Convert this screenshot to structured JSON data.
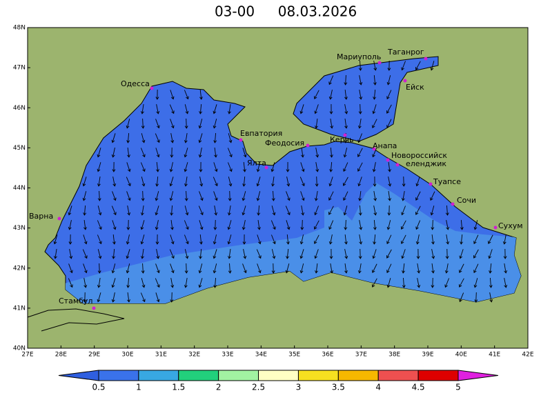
{
  "header": {
    "time": "03-00",
    "date": "08.03.2026"
  },
  "map": {
    "lon_ticks": [
      "27E",
      "28E",
      "29E",
      "30E",
      "31E",
      "32E",
      "33E",
      "34E",
      "35E",
      "36E",
      "37E",
      "38E",
      "39E",
      "40E",
      "41E",
      "42E"
    ],
    "lat_ticks": [
      "48N",
      "47N",
      "46N",
      "45N",
      "44N",
      "43N",
      "42N",
      "41N",
      "40N"
    ],
    "cities": [
      "Одесса",
      "Евпатория",
      "Ялта",
      "Феодосия",
      "Керчь",
      "Анапа",
      "Новороссийск",
      "еленджик",
      "Туапсе",
      "Сочи",
      "Сухум",
      "Варна",
      "Стамбул",
      "Мариуполь",
      "Таганрог",
      "Ейск"
    ]
  },
  "colorbar": {
    "levels": [
      0.5,
      1,
      1.5,
      2,
      2.5,
      3,
      3.5,
      4,
      4.5,
      5
    ],
    "colors": [
      "#2f5fe0",
      "#3a72ea",
      "#38a8e2",
      "#22d07c",
      "#a2f2a2",
      "#ffffc4",
      "#f6e020",
      "#f6b800",
      "#ee5050",
      "#de0000",
      "#e020e0"
    ]
  }
}
